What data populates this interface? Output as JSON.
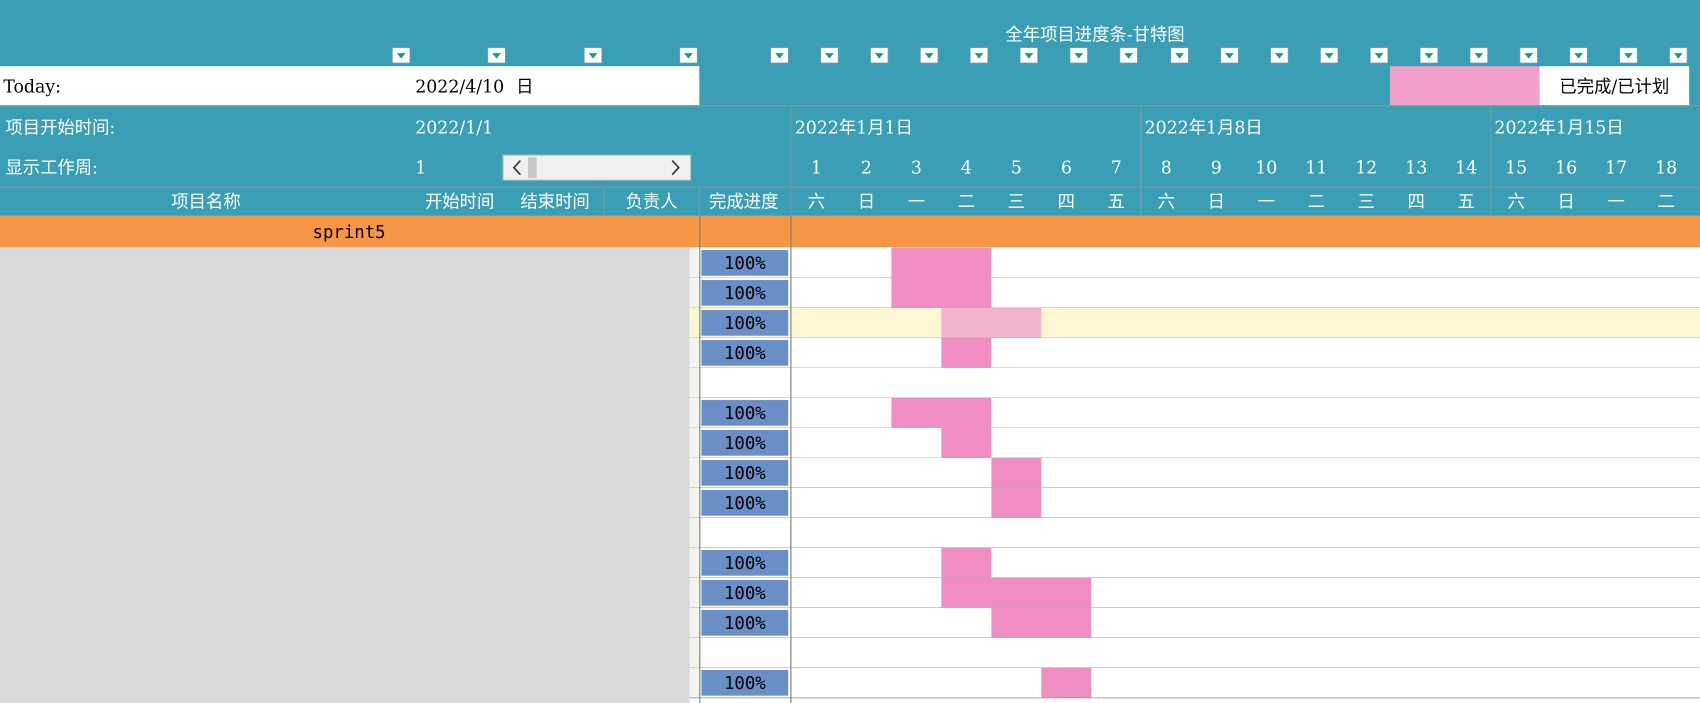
{
  "title": "全年项目进度条-甘特图",
  "today": {
    "label": "Today:",
    "date": "2022/4/10",
    "weekday": "日"
  },
  "legend": "已完成/已计划",
  "start": {
    "label": "项目开始时间:",
    "value": "2022/1/1"
  },
  "week": {
    "label": "显示工作周:",
    "value": 1
  },
  "week_starts": [
    "2022年1月1日",
    "2022年1月8日",
    "2022年1月15日"
  ],
  "days": [
    1,
    2,
    3,
    4,
    5,
    6,
    7,
    8,
    9,
    10,
    11,
    12,
    13,
    14,
    15,
    16,
    17,
    18
  ],
  "weekdays": [
    "六",
    "日",
    "一",
    "二",
    "三",
    "四",
    "五",
    "六",
    "日",
    "一",
    "二",
    "三",
    "四",
    "五",
    "六",
    "日",
    "一",
    "二"
  ],
  "columns": [
    "项目名称",
    "开始时间",
    "结束时间",
    "负责人",
    "完成进度"
  ],
  "section": "sprint5",
  "rows": [
    {
      "progress": "100%",
      "start": 3,
      "end": 4
    },
    {
      "progress": "100%",
      "start": 3,
      "end": 4
    },
    {
      "progress": "100%",
      "start": 4,
      "end": 5,
      "selected": true
    },
    {
      "progress": "100%",
      "start": 4,
      "end": 4
    },
    {
      "progress": null
    },
    {
      "progress": "100%",
      "start": 3,
      "end": 4
    },
    {
      "progress": "100%",
      "start": 4,
      "end": 4
    },
    {
      "progress": "100%",
      "start": 5,
      "end": 5
    },
    {
      "progress": "100%",
      "start": 5,
      "end": 5
    },
    {
      "progress": null
    },
    {
      "progress": "100%",
      "start": 4,
      "end": 4
    },
    {
      "progress": "100%",
      "start": 4,
      "end": 6
    },
    {
      "progress": "100%",
      "start": 5,
      "end": 6
    },
    {
      "progress": null
    },
    {
      "progress": "100%",
      "start": 6,
      "end": 6
    }
  ]
}
